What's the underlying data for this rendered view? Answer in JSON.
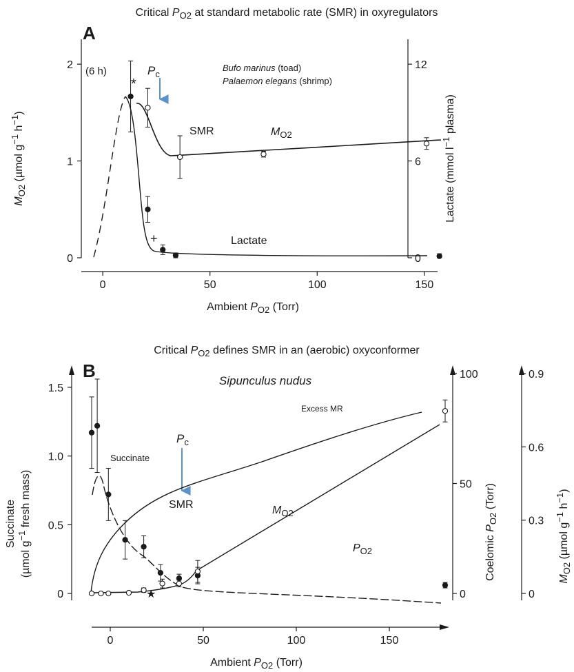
{
  "chart_data": [
    {
      "panel": "A",
      "type": "line",
      "title": {
        "pre": "Critical ",
        "P": "P",
        "sub": "O2",
        "post": " at standard metabolic rate (SMR) in oxyregulators"
      },
      "xlabel": {
        "pre": "Ambient ",
        "P": "P",
        "sub": "O2",
        "post": " (Torr)"
      },
      "ylabel_left": {
        "M": "M",
        "sub": "O2",
        "post": " (µmol g",
        "sup1": "−1",
        "mid": " h",
        "sup2": "−1",
        "end": ")"
      },
      "ylabel_right": {
        "pre": "Lactate (mmol l",
        "sup": "−1",
        "post": " plasma)"
      },
      "xlim": [
        -10,
        160
      ],
      "ylim_left": [
        0,
        2.2
      ],
      "ylim_right": [
        0,
        13.2
      ],
      "x_ticks": [
        "0",
        "50",
        "100",
        "150"
      ],
      "y_left_ticks": [
        "0",
        "1",
        "2"
      ],
      "y_right_ticks": [
        "0",
        "6",
        "12"
      ],
      "species": [
        {
          "italic": "Bufo marinus",
          "plain": " (toad)"
        },
        {
          "italic": "Palaemon elegans",
          "plain": " (shrimp)"
        }
      ],
      "annotations": {
        "time": "(6 h)",
        "star": "*",
        "cross": "+",
        "pc": "P",
        "pc_sub": "c",
        "smr": "SMR",
        "lactate": "Lactate",
        "mo2": "M",
        "mo2_sub": "O2"
      },
      "series": [
        {
          "name": "SMR",
          "axis": "left",
          "marker": "open",
          "x": [
            21,
            36,
            75,
            151
          ],
          "y": [
            1.55,
            1.04,
            1.07,
            1.18
          ],
          "err": [
            0.2,
            0.22,
            0.03,
            0.06
          ]
        },
        {
          "name": "Lactate",
          "axis": "right",
          "marker": "filled",
          "x": [
            13,
            21,
            28,
            34,
            157
          ],
          "y": [
            10.0,
            3.0,
            0.5,
            0.15,
            0.1
          ],
          "err": [
            2.2,
            0.8,
            0.3,
            0.15,
            0.15
          ]
        }
      ],
      "accent_color": "#5b93c8"
    },
    {
      "panel": "B",
      "type": "line",
      "title": {
        "pre": "Critical ",
        "P": "P",
        "sub": "O2",
        "post": " defines SMR in an (aerobic) oxyconformer"
      },
      "xlabel": {
        "pre": "Ambient ",
        "P": "P",
        "sub": "O2",
        "post": " (Torr)"
      },
      "ylabel_left_1": "Succinate",
      "ylabel_left_2": {
        "pre": "(µmol g",
        "sup": "−1",
        "post": " fresh mass)"
      },
      "ylabel_right_1": {
        "pre": "Coelomic ",
        "P": "P",
        "sub": "O2",
        "post": " (Torr)"
      },
      "ylabel_right_2": {
        "M": "M",
        "sub": "O2",
        "post": " (µmol g",
        "sup1": "−1",
        "mid": " h",
        "sup2": "−1",
        "end": ")"
      },
      "xlim": [
        -10,
        180
      ],
      "ylim_left": [
        0,
        1.6
      ],
      "ylim_right_1": [
        0,
        100
      ],
      "ylim_right_2": [
        0,
        0.9
      ],
      "x_ticks": [
        "0",
        "50",
        "100",
        "150"
      ],
      "y_left_ticks": [
        "0",
        "0.5",
        "1.0",
        "1.5"
      ],
      "y_right_1_ticks": [
        "0",
        "50",
        "100"
      ],
      "y_right_2_ticks": [
        "0",
        "0.3",
        "0.6",
        "0.9"
      ],
      "species": {
        "italic": "Sipunculus nudus"
      },
      "annotations": {
        "excess": "Excess MR",
        "succinate": "Succinate",
        "pc": "P",
        "pc_sub": "c",
        "smr": "SMR",
        "mo2": "M",
        "mo2_sub": "O2",
        "po2": "P",
        "po2_sub": "O2",
        "star": "★"
      },
      "series": [
        {
          "name": "Succinate",
          "axis": "left",
          "marker": "filled",
          "x": [
            -10,
            -7,
            -1,
            8,
            18,
            27,
            37,
            47,
            180
          ],
          "y": [
            1.17,
            1.22,
            0.72,
            0.39,
            0.34,
            0.15,
            0.11,
            0.13,
            0.06
          ],
          "err": [
            0.26,
            0.34,
            0.19,
            0.14,
            0.08,
            0.06,
            0.03,
            0.06,
            0.02
          ]
        },
        {
          "name": "Coelomic PO2",
          "axis": "right_1",
          "marker": "open",
          "x": [
            -10,
            -5,
            -1,
            10,
            18,
            28,
            37,
            47,
            180
          ],
          "y": [
            0,
            0,
            0,
            0.3,
            1.5,
            4.5,
            4.5,
            10,
            83
          ],
          "err": [
            0,
            0,
            0,
            0.5,
            1,
            2,
            1.5,
            5,
            5
          ]
        },
        {
          "name": "MO2",
          "axis": "right_2",
          "marker": "none",
          "x": [
            -10,
            -5,
            0,
            8,
            20,
            35,
            60,
            100,
            140,
            180
          ],
          "y": [
            0,
            0.12,
            0.2,
            0.3,
            0.39,
            0.45,
            0.51,
            0.6,
            0.69,
            0.78
          ]
        }
      ],
      "accent_color": "#5b93c8"
    }
  ]
}
